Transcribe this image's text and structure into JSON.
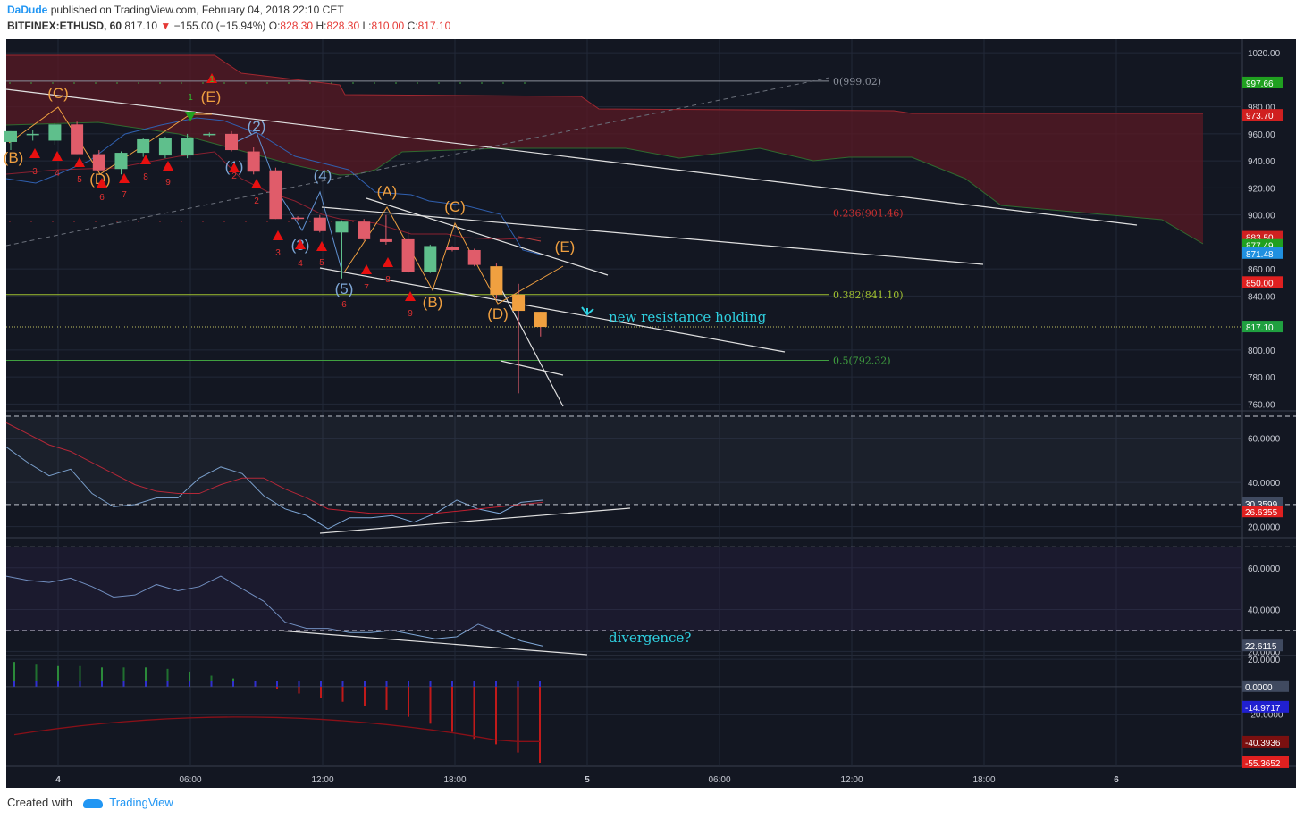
{
  "header": {
    "author": "DaDude",
    "published_text": "published on TradingView.com, February 04, 2018 22:10 CET",
    "symbol": "BITFINEX:ETHUSD, 60",
    "last": "817.10",
    "change": "−155.00 (−15.94%)",
    "ohlc": {
      "O_label": "O:",
      "O": "828.30",
      "H_label": "H:",
      "H": "828.30",
      "L_label": "L:",
      "L": "810.00",
      "C_label": "C:",
      "C": "817.10"
    }
  },
  "footer": {
    "created_with": "Created with",
    "brand": "TradingView"
  },
  "colors": {
    "background": "#131722",
    "up": "#5fbf8c",
    "down": "#e05c6a",
    "orange": "#f0a040",
    "elliott_blue": "#7fa8d8",
    "cloud": "#5a1a24",
    "cyan": "#2fd0e0",
    "fib_red": "#d03030",
    "fib_green": "#a0c030"
  },
  "chart_data": [
    {
      "type": "candlestick",
      "panel": "price",
      "x_tick_labels": [
        "4",
        "06:00",
        "12:00",
        "18:00",
        "5",
        "06:00",
        "12:00",
        "18:00",
        "6"
      ],
      "y_tick_labels": [
        "1020.00",
        "980.00",
        "960.00",
        "940.00",
        "920.00",
        "900.00",
        "860.00",
        "840.00",
        "800.00",
        "780.00",
        "760.00"
      ],
      "ylim": [
        755,
        1030
      ],
      "candles": [
        {
          "o": 954,
          "h": 962,
          "l": 948,
          "c": 962
        },
        {
          "o": 960,
          "h": 963,
          "l": 955,
          "c": 960
        },
        {
          "o": 955,
          "h": 968,
          "l": 952,
          "c": 967
        },
        {
          "o": 967,
          "h": 969,
          "l": 945,
          "c": 945
        },
        {
          "o": 945,
          "h": 948,
          "l": 933,
          "c": 933
        },
        {
          "o": 934,
          "h": 947,
          "l": 930,
          "c": 946
        },
        {
          "o": 946,
          "h": 957,
          "l": 943,
          "c": 956
        },
        {
          "o": 944,
          "h": 958,
          "l": 942,
          "c": 957
        },
        {
          "o": 944,
          "h": 960,
          "l": 942,
          "c": 957
        },
        {
          "o": 960,
          "h": 961,
          "l": 958,
          "c": 960
        },
        {
          "o": 960,
          "h": 962,
          "l": 947,
          "c": 948
        },
        {
          "o": 947,
          "h": 950,
          "l": 930,
          "c": 932
        },
        {
          "o": 933,
          "h": 935,
          "l": 897,
          "c": 897
        },
        {
          "o": 898,
          "h": 899,
          "l": 896,
          "c": 897
        },
        {
          "o": 898,
          "h": 900,
          "l": 887,
          "c": 888
        },
        {
          "o": 887,
          "h": 896,
          "l": 853,
          "c": 895
        },
        {
          "o": 895,
          "h": 897,
          "l": 881,
          "c": 882
        },
        {
          "o": 882,
          "h": 900,
          "l": 878,
          "c": 880
        },
        {
          "o": 882,
          "h": 888,
          "l": 857,
          "c": 858
        },
        {
          "o": 858,
          "h": 878,
          "l": 857,
          "c": 877
        },
        {
          "o": 876,
          "h": 877,
          "l": 873,
          "c": 874
        },
        {
          "o": 874,
          "h": 875,
          "l": 862,
          "c": 863
        },
        {
          "o": 862,
          "h": 864,
          "l": 838,
          "c": 841
        },
        {
          "o": 841,
          "h": 849,
          "l": 768,
          "c": 829
        },
        {
          "o": 828.3,
          "h": 828.3,
          "l": 810,
          "c": 817.1
        }
      ],
      "price_labels": [
        "997.66",
        "973.70",
        "883.50",
        "877.49",
        "871.48",
        "850.00",
        "817.10"
      ],
      "fib_levels": [
        {
          "label": "0(999.02)",
          "value": 999.02
        },
        {
          "label": "0.236(901.46)",
          "value": 901.46
        },
        {
          "label": "0.382(841.10)",
          "value": 841.1
        },
        {
          "label": "0.5(792.32)",
          "value": 792.32
        }
      ],
      "elliott_labels": [
        "(C)",
        "(E)",
        "(B)",
        "(D)",
        "(1)",
        "(2)",
        "(3)",
        "(4)",
        "(5)",
        "(A)",
        "(C)",
        "(B)",
        "(D)",
        "(E)"
      ],
      "td_counts": [
        "3",
        "4",
        "5",
        "6",
        "7",
        "8",
        "9",
        "1",
        "1",
        "2",
        "2",
        "3",
        "4",
        "5",
        "6",
        "7",
        "8",
        "9"
      ],
      "annotation": "new resistance holding"
    },
    {
      "type": "line",
      "panel": "oscillator-1",
      "y_tick_labels": [
        "60.0000",
        "40.0000",
        "20.0000"
      ],
      "ylim": [
        15,
        72
      ],
      "series_labels": [
        "30.3599",
        "26.6355"
      ],
      "series": [
        {
          "values": [
            56,
            49,
            43,
            46,
            35,
            29,
            30,
            33,
            33,
            42,
            47,
            44,
            34,
            28,
            25,
            19,
            24,
            24,
            25,
            22,
            26,
            32,
            28,
            26,
            31,
            32
          ]
        },
        {
          "values": [
            67,
            62,
            57,
            54,
            49,
            44,
            39,
            36,
            35,
            35,
            39,
            42,
            42,
            37,
            33,
            28,
            27,
            26,
            26,
            26,
            26,
            27,
            28,
            29,
            30,
            31
          ]
        }
      ]
    },
    {
      "type": "line",
      "panel": "oscillator-2",
      "y_tick_labels": [
        "60.0000",
        "40.0000",
        "20.0000"
      ],
      "ylim": [
        18,
        74
      ],
      "series_labels": [
        "22.6115"
      ],
      "series": [
        {
          "values": [
            56,
            54,
            53,
            55,
            51,
            46,
            47,
            52,
            49,
            51,
            56,
            50,
            44,
            34,
            31,
            31,
            29,
            29,
            30,
            28,
            26,
            27,
            33,
            29,
            25,
            22.6
          ]
        }
      ],
      "annotation": "divergence?"
    },
    {
      "type": "bar",
      "panel": "histogram",
      "y_tick_labels": [
        "20.0000",
        "-20.0000"
      ],
      "ylim": [
        -58,
        22
      ],
      "series_labels": [
        "0.0000",
        "-14.9717",
        "-40.3936",
        "-55.3652"
      ],
      "values": [
        18,
        16,
        15,
        15,
        14,
        14,
        14,
        13,
        11,
        8,
        6,
        3,
        -2,
        -5,
        -8,
        -11,
        -14,
        -17,
        -22,
        -27,
        -33,
        -38,
        -42,
        -48,
        -55.4
      ]
    }
  ]
}
